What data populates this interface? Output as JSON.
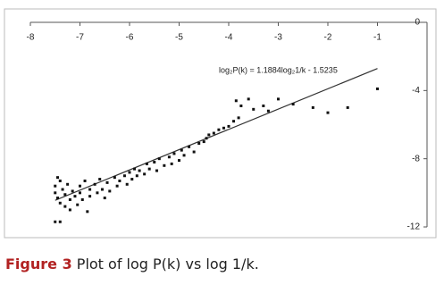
{
  "chart_data": {
    "type": "scatter",
    "annotation": "log₂P(k) = 1.1884log₂1/k - 1.5235",
    "series": [
      {
        "color": "#111111",
        "x": [
          -7.5,
          -7.5,
          -7.45,
          -7.4,
          -7.4,
          -7.35,
          -7.3,
          -7.3,
          -7.25,
          -7.2,
          -7.2,
          -7.15,
          -7.1,
          -7.05,
          -7.0,
          -7.0,
          -6.95,
          -6.9,
          -6.85,
          -6.8,
          -6.8,
          -6.7,
          -6.65,
          -6.6,
          -6.55,
          -6.5,
          -6.45,
          -6.4,
          -6.3,
          -6.25,
          -6.2,
          -6.1,
          -6.05,
          -6.0,
          -5.95,
          -5.9,
          -5.85,
          -5.8,
          -5.7,
          -5.65,
          -5.6,
          -5.5,
          -5.45,
          -5.4,
          -5.3,
          -5.2,
          -5.15,
          -5.1,
          -5.0,
          -4.95,
          -4.9,
          -4.8,
          -4.7,
          -4.6,
          -4.5,
          -4.45,
          -4.4,
          -4.3,
          -4.2,
          -4.1,
          -4.0,
          -3.9,
          -3.85,
          -3.8,
          -3.75,
          -3.6,
          -3.5,
          -3.3,
          -3.2,
          -3.0,
          -2.7,
          -2.3,
          -2.0,
          -1.6,
          -1.0,
          -7.5,
          -7.4,
          -7.45
        ],
        "values": [
          -10.0,
          -9.6,
          -10.3,
          -9.3,
          -10.6,
          -9.8,
          -10.1,
          -10.8,
          -9.5,
          -10.4,
          -11.0,
          -9.9,
          -10.2,
          -10.7,
          -9.6,
          -10.0,
          -10.4,
          -9.3,
          -11.1,
          -9.8,
          -10.2,
          -9.5,
          -10.0,
          -9.2,
          -9.8,
          -10.3,
          -9.4,
          -9.9,
          -9.1,
          -9.6,
          -9.3,
          -9.0,
          -9.5,
          -8.8,
          -9.2,
          -8.6,
          -9.0,
          -8.7,
          -8.9,
          -8.3,
          -8.6,
          -8.2,
          -8.7,
          -8.0,
          -8.4,
          -7.9,
          -8.3,
          -7.7,
          -8.1,
          -7.5,
          -7.8,
          -7.3,
          -7.6,
          -7.1,
          -7.0,
          -6.8,
          -6.6,
          -6.5,
          -6.3,
          -6.2,
          -6.1,
          -5.8,
          -4.6,
          -5.6,
          -4.9,
          -4.5,
          -5.1,
          -4.9,
          -5.2,
          -4.5,
          -4.8,
          -5.0,
          -5.3,
          -5.0,
          -3.9,
          -11.7,
          -11.7,
          -9.1
        ]
      }
    ],
    "trendline": {
      "color": "#333333",
      "x": [
        -7.5,
        -1
      ],
      "values": [
        -10.44,
        -2.71
      ]
    },
    "xlim": [
      -8,
      0
    ],
    "ylim": [
      -12,
      0
    ],
    "xticks": [
      -8,
      -7,
      -6,
      -5,
      -4,
      -3,
      -2,
      -1
    ],
    "yticks": [
      0,
      -4,
      -8,
      -12
    ]
  },
  "caption": {
    "label": "Figure 3",
    "text": "Plot of log P(k) vs log 1/k."
  }
}
